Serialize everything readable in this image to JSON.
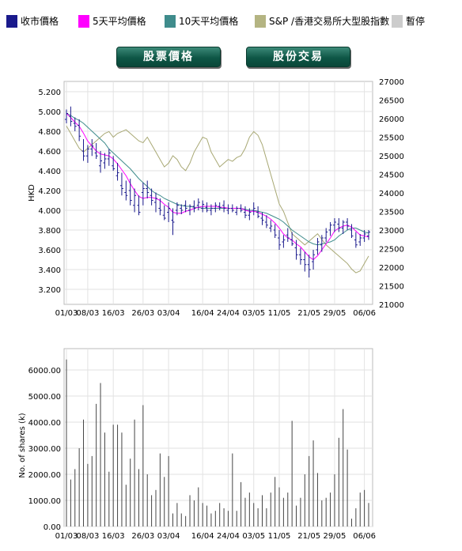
{
  "legend": [
    {
      "label": "收市價格",
      "color": "#1a1a8c"
    },
    {
      "label": "5天平均價格",
      "color": "#ff00ff"
    },
    {
      "label": "10天平均價格",
      "color": "#3f8c8c"
    },
    {
      "label": "S&P /香港交易所大型股指數",
      "color": "#b4b482"
    },
    {
      "label": "暫停",
      "color": "#cccccc"
    }
  ],
  "buttons": {
    "stock_price": "股票價格",
    "share_trading": "股份交易"
  },
  "chart_data": [
    {
      "type": "line",
      "ylabel": "HKD",
      "ylim": [
        3.2,
        5.2
      ],
      "yticks": [
        "3.200",
        "3.400",
        "3.600",
        "3.800",
        "4.000",
        "4.200",
        "4.400",
        "4.600",
        "4.800",
        "5.000",
        "5.200"
      ],
      "y2lim": [
        21000,
        27000
      ],
      "y2ticks": [
        "21000",
        "21500",
        "22000",
        "22500",
        "23000",
        "23500",
        "24000",
        "24500",
        "25000",
        "25500",
        "26000",
        "26500",
        "27000"
      ],
      "xticks": [
        "01/03",
        "08/03",
        "16/03",
        "26/03",
        "03/04",
        "16/04",
        "24/04",
        "03/05",
        "11/05",
        "21/05",
        "29/05",
        "06/06"
      ],
      "xtick_index": [
        0,
        5,
        11,
        18,
        24,
        32,
        38,
        44,
        50,
        57,
        63,
        70
      ],
      "ohlc": [
        [
          4.92,
          5.02,
          4.88,
          4.98
        ],
        [
          4.95,
          5.05,
          4.85,
          4.9
        ],
        [
          4.88,
          4.94,
          4.8,
          4.85
        ],
        [
          4.86,
          4.92,
          4.7,
          4.75
        ],
        [
          4.6,
          4.72,
          4.5,
          4.55
        ],
        [
          4.55,
          4.66,
          4.48,
          4.62
        ],
        [
          4.62,
          4.72,
          4.55,
          4.65
        ],
        [
          4.58,
          4.68,
          4.52,
          4.55
        ],
        [
          4.45,
          4.6,
          4.38,
          4.5
        ],
        [
          4.48,
          4.58,
          4.42,
          4.52
        ],
        [
          4.52,
          4.62,
          4.45,
          4.58
        ],
        [
          4.45,
          4.55,
          4.4,
          4.42
        ],
        [
          4.35,
          4.48,
          4.3,
          4.38
        ],
        [
          4.25,
          4.38,
          4.15,
          4.22
        ],
        [
          4.18,
          4.3,
          4.1,
          4.15
        ],
        [
          4.2,
          4.32,
          4.05,
          4.1
        ],
        [
          4.05,
          4.22,
          3.98,
          4.15
        ],
        [
          4.05,
          4.15,
          3.95,
          3.98
        ],
        [
          4.18,
          4.28,
          4.05,
          4.22
        ],
        [
          4.22,
          4.3,
          4.12,
          4.18
        ],
        [
          4.15,
          4.22,
          4.05,
          4.1
        ],
        [
          4.08,
          4.18,
          3.98,
          4.12
        ],
        [
          4.02,
          4.12,
          3.95,
          4.0
        ],
        [
          3.95,
          4.05,
          3.9,
          3.92
        ],
        [
          3.98,
          4.08,
          3.88,
          4.02
        ],
        [
          3.9,
          4.02,
          3.75,
          3.88
        ],
        [
          4.0,
          4.08,
          3.95,
          4.05
        ],
        [
          4.02,
          4.06,
          3.96,
          4.0
        ],
        [
          4.05,
          4.1,
          3.98,
          4.02
        ],
        [
          4.0,
          4.06,
          3.95,
          4.04
        ],
        [
          4.04,
          4.1,
          3.98,
          4.02
        ],
        [
          4.05,
          4.12,
          4.0,
          4.08
        ],
        [
          4.02,
          4.1,
          3.98,
          4.06
        ],
        [
          4.03,
          4.08,
          3.98,
          4.0
        ],
        [
          4.0,
          4.06,
          3.95,
          4.02
        ],
        [
          4.02,
          4.08,
          3.98,
          4.05
        ],
        [
          4.04,
          4.08,
          4.0,
          4.03
        ],
        [
          4.05,
          4.1,
          3.98,
          4.02
        ],
        [
          4.0,
          4.06,
          3.96,
          4.02
        ],
        [
          4.02,
          4.06,
          3.98,
          4.0
        ],
        [
          3.98,
          4.04,
          3.95,
          4.02
        ],
        [
          4.02,
          4.06,
          3.98,
          4.0
        ],
        [
          3.98,
          4.04,
          3.92,
          3.95
        ],
        [
          3.95,
          4.02,
          3.9,
          3.98
        ],
        [
          4.0,
          4.08,
          3.95,
          4.02
        ],
        [
          3.98,
          4.04,
          3.92,
          3.94
        ],
        [
          3.92,
          3.98,
          3.85,
          3.9
        ],
        [
          3.88,
          3.95,
          3.82,
          3.85
        ],
        [
          3.82,
          3.9,
          3.78,
          3.84
        ],
        [
          3.8,
          3.86,
          3.72,
          3.75
        ],
        [
          3.72,
          3.8,
          3.6,
          3.65
        ],
        [
          3.68,
          3.75,
          3.62,
          3.7
        ],
        [
          3.75,
          3.82,
          3.68,
          3.72
        ],
        [
          3.7,
          3.78,
          3.64,
          3.66
        ],
        [
          3.62,
          3.7,
          3.5,
          3.55
        ],
        [
          3.55,
          3.62,
          3.45,
          3.5
        ],
        [
          3.5,
          3.58,
          3.38,
          3.45
        ],
        [
          3.45,
          3.55,
          3.32,
          3.4
        ],
        [
          3.48,
          3.6,
          3.4,
          3.55
        ],
        [
          3.6,
          3.72,
          3.55,
          3.68
        ],
        [
          3.65,
          3.75,
          3.58,
          3.72
        ],
        [
          3.72,
          3.82,
          3.68,
          3.78
        ],
        [
          3.8,
          3.88,
          3.74,
          3.85
        ],
        [
          3.85,
          3.92,
          3.78,
          3.88
        ],
        [
          3.86,
          3.92,
          3.78,
          3.82
        ],
        [
          3.82,
          3.9,
          3.76,
          3.88
        ],
        [
          3.88,
          3.92,
          3.8,
          3.84
        ],
        [
          3.8,
          3.86,
          3.72,
          3.74
        ],
        [
          3.7,
          3.78,
          3.62,
          3.65
        ],
        [
          3.68,
          3.76,
          3.64,
          3.72
        ],
        [
          3.72,
          3.8,
          3.68,
          3.76
        ],
        [
          3.74,
          3.8,
          3.7,
          3.78
        ]
      ],
      "ma5": [
        4.98,
        4.94,
        4.89,
        4.85,
        4.78,
        4.7,
        4.65,
        4.6,
        4.57,
        4.56,
        4.55,
        4.52,
        4.47,
        4.41,
        4.35,
        4.27,
        4.2,
        4.14,
        4.12,
        4.13,
        4.13,
        4.12,
        4.1,
        4.06,
        4.03,
        3.98,
        3.97,
        3.97,
        3.99,
        4.0,
        4.02,
        4.03,
        4.04,
        4.04,
        4.04,
        4.04,
        4.03,
        4.03,
        4.02,
        4.02,
        4.02,
        4.02,
        4.0,
        3.99,
        3.99,
        3.98,
        3.96,
        3.94,
        3.91,
        3.87,
        3.82,
        3.76,
        3.72,
        3.7,
        3.66,
        3.63,
        3.58,
        3.53,
        3.5,
        3.54,
        3.6,
        3.66,
        3.72,
        3.79,
        3.82,
        3.84,
        3.85,
        3.83,
        3.79,
        3.75,
        3.74,
        3.73
      ],
      "ma10": [
        4.98,
        4.96,
        4.93,
        4.91,
        4.88,
        4.84,
        4.8,
        4.76,
        4.72,
        4.68,
        4.62,
        4.58,
        4.54,
        4.5,
        4.46,
        4.42,
        4.37,
        4.32,
        4.28,
        4.24,
        4.2,
        4.17,
        4.15,
        4.12,
        4.1,
        4.08,
        4.06,
        4.05,
        4.04,
        4.04,
        4.03,
        4.03,
        4.02,
        4.02,
        4.02,
        4.02,
        4.02,
        4.02,
        4.02,
        4.02,
        4.02,
        4.02,
        4.01,
        4.0,
        4.0,
        3.99,
        3.98,
        3.97,
        3.95,
        3.93,
        3.91,
        3.88,
        3.84,
        3.8,
        3.77,
        3.74,
        3.71,
        3.68,
        3.66,
        3.65,
        3.66,
        3.67,
        3.68,
        3.7,
        3.74,
        3.77,
        3.8,
        3.82,
        3.82,
        3.8,
        3.78,
        3.77
      ],
      "index": [
        25800,
        25600,
        25400,
        25200,
        25100,
        25200,
        25300,
        25400,
        25500,
        25600,
        25650,
        25500,
        25600,
        25650,
        25700,
        25600,
        25500,
        25400,
        25350,
        25500,
        25300,
        25100,
        24900,
        24700,
        24800,
        25000,
        24900,
        24700,
        24600,
        24800,
        25100,
        25300,
        25500,
        25450,
        25100,
        24900,
        24700,
        24800,
        24900,
        24850,
        24950,
        25000,
        25200,
        25500,
        25650,
        25550,
        25300,
        24900,
        24500,
        24100,
        23700,
        23500,
        23200,
        22900,
        22800,
        22700,
        22600,
        22700,
        22800,
        22900,
        22750,
        22600,
        22500,
        22400,
        22300,
        22200,
        22100,
        21950,
        21850,
        21900,
        22100,
        22300
      ]
    },
    {
      "type": "bar",
      "ylabel": "No. of shares (k)",
      "ylim": [
        0,
        6000
      ],
      "yticks": [
        "0.00",
        "1000.00",
        "2000.00",
        "3000.00",
        "4000.00",
        "5000.00",
        "6000.00"
      ],
      "xticks": [
        "01/03",
        "08/03",
        "16/03",
        "26/03",
        "03/04",
        "16/04",
        "24/04",
        "03/05",
        "11/05",
        "21/05",
        "29/05",
        "06/06"
      ],
      "xtick_index": [
        0,
        5,
        11,
        18,
        24,
        32,
        38,
        44,
        50,
        57,
        63,
        70
      ],
      "values": [
        6400,
        1800,
        2200,
        3000,
        4100,
        2400,
        2700,
        4700,
        5500,
        3600,
        2100,
        3900,
        3900,
        3600,
        1600,
        2600,
        4100,
        2200,
        4650,
        2000,
        1200,
        1400,
        2800,
        1900,
        2700,
        500,
        900,
        500,
        400,
        1200,
        1000,
        1500,
        900,
        800,
        500,
        600,
        900,
        700,
        600,
        2800,
        600,
        1700,
        1100,
        1300,
        900,
        700,
        1200,
        700,
        1300,
        1900,
        1500,
        1100,
        1300,
        4050,
        800,
        1100,
        2000,
        2700,
        3300,
        2050,
        1000,
        1100,
        1300,
        2000,
        3400,
        4500,
        2950,
        300,
        700,
        1300,
        1400,
        900
      ]
    }
  ]
}
